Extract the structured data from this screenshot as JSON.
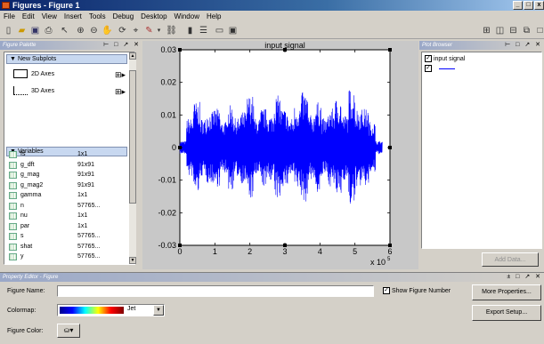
{
  "window": {
    "title": "Figures - Figure 1",
    "min_label": "_",
    "max_label": "□",
    "close_label": "x"
  },
  "menu": [
    "File",
    "Edit",
    "View",
    "Insert",
    "Tools",
    "Debug",
    "Desktop",
    "Window",
    "Help"
  ],
  "figure_palette": {
    "header": "Figure Palette",
    "controls": "⊢ □ ↗ ✕",
    "new_subplots": {
      "label": "New Subplots",
      "items": [
        {
          "label": "2D Axes"
        },
        {
          "label": "3D Axes"
        }
      ]
    },
    "variables": {
      "label": "Variables",
      "items": [
        {
          "name": "fs",
          "size": "1x1"
        },
        {
          "name": "g_dft",
          "size": "91x91"
        },
        {
          "name": "g_mag",
          "size": "91x91"
        },
        {
          "name": "g_mag2",
          "size": "91x91"
        },
        {
          "name": "gamma",
          "size": "1x1"
        },
        {
          "name": "n",
          "size": "57765..."
        },
        {
          "name": "nu",
          "size": "1x1"
        },
        {
          "name": "par",
          "size": "1x1"
        },
        {
          "name": "s",
          "size": "57765..."
        },
        {
          "name": "shat",
          "size": "57765..."
        },
        {
          "name": "y",
          "size": "57765..."
        }
      ]
    }
  },
  "plot_browser": {
    "header": "Plot Browser",
    "controls": "⊢ □ ↗ ✕",
    "items": [
      {
        "label": "input signal",
        "checked": true
      },
      {
        "label": "",
        "checked": true
      }
    ],
    "add_data_label": "Add Data..."
  },
  "property_editor": {
    "header": "Property Editor - Figure",
    "controls": "± □ ↗ ✕",
    "figure_name_label": "Figure Name:",
    "figure_name_value": "",
    "show_figure_number_label": "Show Figure Number",
    "show_figure_number_checked": true,
    "colormap_label": "Colormap:",
    "colormap_value": "Jet",
    "figure_color_label": "Figure Color:",
    "more_properties_label": "More Properties...",
    "export_setup_label": "Export Setup..."
  },
  "chart_data": {
    "type": "line",
    "title": "input signal",
    "xlabel": "",
    "ylabel": "",
    "x_exponent_label": "x 10",
    "x_exponent_power": "5",
    "xlim": [
      0,
      6
    ],
    "ylim": [
      -0.03,
      0.03
    ],
    "xticks": [
      0,
      1,
      2,
      3,
      4,
      5,
      6
    ],
    "yticks": [
      0.03,
      0.02,
      0.01,
      0,
      -0.01,
      -0.02,
      -0.03
    ],
    "ytick_labels": [
      "0.03",
      "0.02",
      "0.01",
      "0",
      "-0.01",
      "-0.02",
      "-0.03"
    ],
    "series": [
      {
        "name": "input signal",
        "color": "#0000ff",
        "x_range": [
          0,
          5.78
        ],
        "amplitude_envelope": [
          0.002,
          0.009,
          0.014,
          0.009,
          0.011,
          0.012,
          0.008,
          0.013,
          0.009,
          0.011,
          0.016,
          0.009,
          0.012,
          0.01,
          0.016,
          0.012,
          0.009,
          0.013,
          0.017,
          0.01,
          0.014,
          0.009,
          0.012,
          0.015,
          0.01,
          0.018,
          0.012,
          0.012,
          0.008,
          0.002
        ]
      }
    ]
  }
}
